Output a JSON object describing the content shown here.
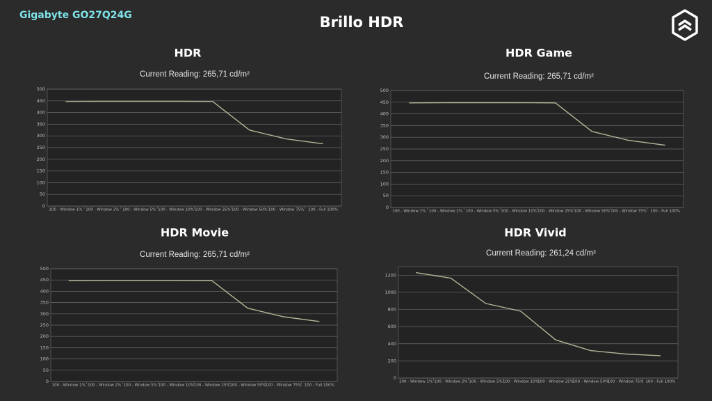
{
  "header": {
    "brand": "Gigabyte GO27Q24G",
    "title": "Brillo HDR"
  },
  "chart_data": [
    {
      "type": "line",
      "title": "HDR",
      "subtitle": "Current Reading: 265,71 cd/m²",
      "categories": [
        "100 - Window 1%",
        "100 - Window 2%",
        "100 - Window 5%",
        "100 - Window 10%",
        "100 - Window 25%",
        "100 - Window 50%",
        "100 - Window 75%",
        "100 - Full 100%"
      ],
      "values": [
        447,
        448,
        448,
        448,
        447,
        325,
        287,
        266
      ],
      "color": "#b5b598",
      "ylim": [
        0,
        500
      ],
      "yticks": [
        0,
        50,
        100,
        150,
        200,
        250,
        300,
        350,
        400,
        450,
        500
      ],
      "grid": true
    },
    {
      "type": "line",
      "title": "HDR Game",
      "subtitle": "Current Reading: 265,71 cd/m²",
      "categories": [
        "100 - Window 1%",
        "100 - Window 2%",
        "100 - Window 5%",
        "100 - Window 10%",
        "100 - Window 25%",
        "100 - Window 50%",
        "100 - Window 75%",
        "100 - Full 100%"
      ],
      "values": [
        447,
        448,
        448,
        448,
        447,
        325,
        287,
        266
      ],
      "color": "#b5b598",
      "ylim": [
        0,
        500
      ],
      "yticks": [
        0,
        50,
        100,
        150,
        200,
        250,
        300,
        350,
        400,
        450,
        500
      ],
      "grid": true
    },
    {
      "type": "line",
      "title": "HDR Movie",
      "subtitle": "Current Reading: 265,71 cd/m²",
      "categories": [
        "100 - Window 1%",
        "100 - Window 2%",
        "100 - Window 5%",
        "100 - Window 10%",
        "100 - Window 25%",
        "100 - Window 50%",
        "100 - Window 75%",
        "100 - Full 100%"
      ],
      "values": [
        447,
        448,
        448,
        448,
        447,
        325,
        287,
        266
      ],
      "color": "#b5b598",
      "ylim": [
        0,
        500
      ],
      "yticks": [
        0,
        50,
        100,
        150,
        200,
        250,
        300,
        350,
        400,
        450,
        500
      ],
      "grid": true
    },
    {
      "type": "line",
      "title": "HDR Vivid",
      "subtitle": "Current Reading: 261,24 cd/m²",
      "categories": [
        "100 - Window 1%",
        "100 - Window 2%",
        "100 - Window 5%",
        "100 - Window 10%",
        "100 - Window 25%",
        "100 - Window 50%",
        "100 - Window 75%",
        "100 - Full 100%"
      ],
      "values": [
        1230,
        1165,
        870,
        780,
        445,
        320,
        280,
        261
      ],
      "color": "#b5b598",
      "ylim": [
        0,
        1300
      ],
      "yticks": [
        0,
        200,
        400,
        600,
        800,
        1000,
        1200
      ],
      "grid": true
    }
  ]
}
